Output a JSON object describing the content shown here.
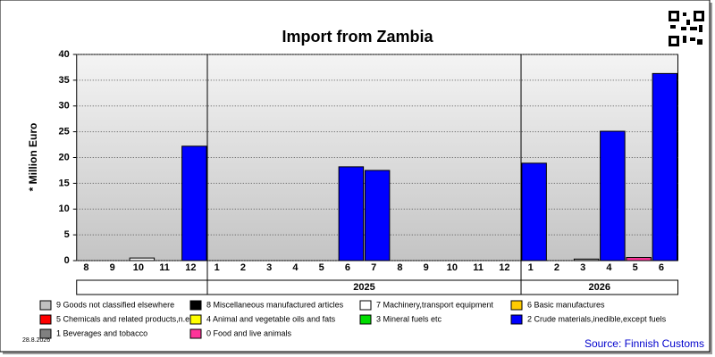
{
  "chart_data": {
    "type": "bar",
    "stacked": true,
    "title": "Import from Zambia",
    "y_label": "* Million Euro",
    "date_note": "28.8.2026",
    "source": "Source: Finnish Customs",
    "categories": [
      "8",
      "9",
      "10",
      "11",
      "12",
      "1",
      "2",
      "3",
      "4",
      "5",
      "6",
      "7",
      "8",
      "9",
      "10",
      "11",
      "12",
      "1",
      "2",
      "3",
      "4",
      "5",
      "6"
    ],
    "year_groups": [
      {
        "label": "2025",
        "first": 5
      },
      {
        "label": "2026",
        "first": 17
      }
    ],
    "ylim": [
      0,
      40
    ],
    "yticks": [
      0,
      5,
      10,
      15,
      20,
      25,
      30,
      35,
      40
    ],
    "grid": true,
    "series": [
      {
        "name": "9 Goods not classified elsewhere",
        "color": "#c0c0c0",
        "values": [
          0,
          0,
          0,
          0,
          0,
          0,
          0,
          0,
          0,
          0,
          0,
          0,
          0,
          0,
          0,
          0,
          0,
          0,
          0,
          0.3,
          0,
          0,
          0
        ]
      },
      {
        "name": "8 Miscellaneous manufactured articles",
        "color": "#000000",
        "values": [
          0,
          0,
          0,
          0,
          0,
          0,
          0,
          0,
          0,
          0,
          0,
          0,
          0,
          0,
          0,
          0,
          0,
          0,
          0,
          0,
          0,
          0,
          0
        ]
      },
      {
        "name": "7 Machinery,transport equipment",
        "color": "#ffffff",
        "values": [
          0,
          0,
          0.5,
          0,
          0,
          0,
          0,
          0,
          0,
          0,
          0,
          0,
          0,
          0,
          0,
          0,
          0,
          0,
          0,
          0,
          0,
          0,
          0
        ]
      },
      {
        "name": "6 Basic manufactures",
        "color": "#ffcc00",
        "values": [
          0,
          0,
          0,
          0,
          0,
          0,
          0,
          0,
          0,
          0,
          0,
          0,
          0,
          0,
          0,
          0,
          0,
          0,
          0,
          0,
          0,
          0,
          0
        ]
      },
      {
        "name": "5 Chemicals and related products,n.e.s.",
        "color": "#ff0000",
        "values": [
          0,
          0,
          0,
          0,
          0,
          0,
          0,
          0,
          0,
          0,
          0,
          0,
          0,
          0,
          0,
          0,
          0,
          0,
          0,
          0,
          0,
          0,
          0
        ]
      },
      {
        "name": "4 Animal and vegetable oils and fats",
        "color": "#ffff00",
        "values": [
          0,
          0,
          0,
          0,
          0,
          0,
          0,
          0,
          0,
          0,
          0,
          0,
          0,
          0,
          0,
          0,
          0,
          0,
          0,
          0,
          0,
          0,
          0
        ]
      },
      {
        "name": "3 Mineral fuels etc",
        "color": "#00dd00",
        "values": [
          0,
          0,
          0,
          0,
          0,
          0,
          0,
          0,
          0,
          0,
          0,
          0,
          0,
          0,
          0,
          0,
          0,
          0,
          0,
          0,
          0,
          0,
          0
        ]
      },
      {
        "name": "2 Crude materials,inedible,except fuels",
        "color": "#0000ff",
        "values": [
          0,
          0,
          0,
          0,
          22.2,
          0,
          0,
          0,
          0,
          0,
          18.2,
          17.5,
          0,
          0,
          0,
          0,
          0,
          18.9,
          0,
          0,
          25.1,
          0,
          36.3
        ]
      },
      {
        "name": "1 Beverages and tobacco",
        "color": "#808080",
        "values": [
          0,
          0,
          0,
          0,
          0,
          0,
          0,
          0,
          0,
          0,
          0,
          0,
          0,
          0,
          0,
          0,
          0,
          0,
          0,
          0,
          0,
          0,
          0
        ]
      },
      {
        "name": "0 Food and live animals",
        "color": "#ff3399",
        "values": [
          0,
          0,
          0,
          0,
          0,
          0,
          0,
          0,
          0,
          0,
          0,
          0,
          0,
          0,
          0,
          0,
          0,
          0,
          0,
          0,
          0,
          0.6,
          0
        ]
      }
    ]
  }
}
